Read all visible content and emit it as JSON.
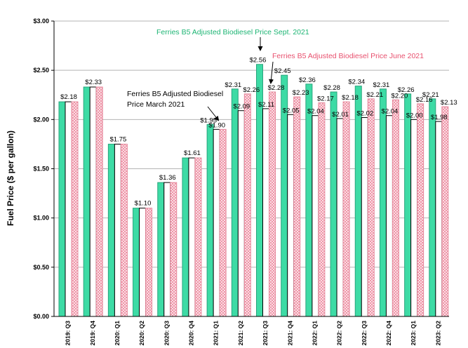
{
  "chart_data": {
    "type": "bar",
    "ylabel": "Fuel Price ($ per gallon)",
    "ylim": [
      0,
      3
    ],
    "y_ticks": [
      "$0.00",
      "$0.50",
      "$1.00",
      "$1.50",
      "$2.00",
      "$2.50",
      "$3.00"
    ],
    "grid": true,
    "categories": [
      "2019: Q3",
      "2019: Q4",
      "2020: Q1",
      "2020: Q2",
      "2020: Q3",
      "2020: Q4",
      "2021: Q1",
      "2021: Q2",
      "2021: Q3",
      "2021: Q4",
      "2022: Q1",
      "2022: Q2",
      "2022: Q3",
      "2022: Q4",
      "2023: Q1",
      "2023: Q2"
    ],
    "series": [
      {
        "values": [
          2.18,
          2.33,
          1.75,
          1.1,
          1.36,
          1.61,
          1.95,
          2.31,
          2.56,
          2.45,
          2.36,
          2.28,
          2.34,
          2.31,
          2.26,
          2.21
        ],
        "color": "#3DDBA5",
        "labels": [
          "$2.18",
          "$2.33",
          "$1.75",
          "$1.10",
          "$1.36",
          "$1.61",
          "$1.95",
          "$2.31",
          "$2.56",
          "$2.45",
          "$2.36",
          "$2.28",
          "$2.34",
          "$2.31",
          "$2.26",
          "$2.21"
        ]
      },
      {
        "values": [
          2.18,
          2.33,
          1.75,
          1.1,
          1.36,
          1.61,
          1.9,
          2.09,
          2.11,
          2.05,
          2.04,
          2.01,
          2.02,
          2.04,
          2.0,
          1.98
        ],
        "color": "#ffffff",
        "labels": [
          "",
          "",
          "",
          "",
          "",
          "",
          "$1.90",
          "$2.09",
          "$2.11",
          "$2.05",
          "$2.04",
          "$2.01",
          "$2.02",
          "$2.04",
          "$2.00",
          "$1.98"
        ]
      },
      {
        "values": [
          2.18,
          2.33,
          1.75,
          1.1,
          1.36,
          1.61,
          1.9,
          2.26,
          2.28,
          2.23,
          2.17,
          2.18,
          2.21,
          2.2,
          2.16,
          2.13
        ],
        "color": "#F4A9B8",
        "labels": [
          "",
          "",
          "",
          "",
          "",
          "",
          "",
          "$2.26",
          "$2.28",
          "$2.23",
          "$2.17",
          "$2.18",
          "$2.21",
          "$2.20",
          "$2.16",
          "$2.13"
        ]
      }
    ],
    "annotations": [
      {
        "id": "march",
        "text": [
          "Ferries B5 Adjusted Biodiesel",
          "Price March 2021"
        ],
        "color": "#000000"
      },
      {
        "id": "sept",
        "text": [
          "Ferries B5 Adjusted Biodiesel Price Sept. 2021"
        ],
        "color": "#1DB574"
      },
      {
        "id": "june",
        "text": [
          "Ferries B5 Adjusted Biodiesel Price June 2021"
        ],
        "color": "#E8506E"
      }
    ]
  }
}
